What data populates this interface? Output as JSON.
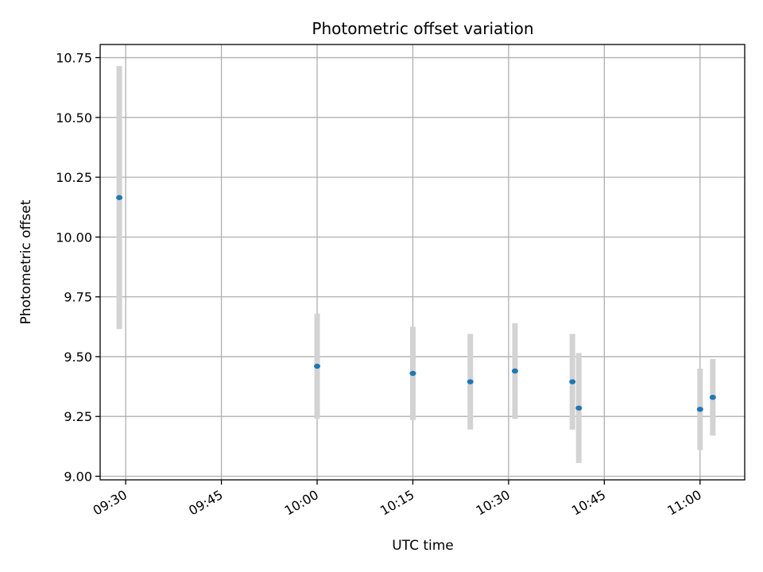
{
  "chart_data": {
    "type": "scatter",
    "title": "Photometric offset variation",
    "xlabel": "UTC time",
    "ylabel": "Photometric offset",
    "x_ticks": [
      "09:30",
      "09:45",
      "10:00",
      "10:15",
      "10:30",
      "10:45",
      "11:00"
    ],
    "y_ticks": [
      "9.00",
      "9.25",
      "9.50",
      "9.75",
      "10.00",
      "10.25",
      "10.50",
      "10.75"
    ],
    "xlim": [
      "09:26",
      "11:07"
    ],
    "ylim": [
      8.985,
      10.805
    ],
    "grid": true,
    "points": [
      {
        "time": "09:29",
        "y": 10.165,
        "yerr": 0.55
      },
      {
        "time": "10:00",
        "y": 9.46,
        "yerr": 0.22
      },
      {
        "time": "10:15",
        "y": 9.43,
        "yerr": 0.195
      },
      {
        "time": "10:24",
        "y": 9.395,
        "yerr": 0.2
      },
      {
        "time": "10:31",
        "y": 9.44,
        "yerr": 0.2
      },
      {
        "time": "10:40",
        "y": 9.395,
        "yerr": 0.2
      },
      {
        "time": "10:41",
        "y": 9.285,
        "yerr": 0.23
      },
      {
        "time": "11:00",
        "y": 9.28,
        "yerr": 0.17
      },
      {
        "time": "11:02",
        "y": 9.33,
        "yerr": 0.16
      }
    ],
    "colors": {
      "marker": "#1f77b4",
      "errorbar": "#d3d3d3",
      "grid": "#b0b0b0"
    }
  }
}
